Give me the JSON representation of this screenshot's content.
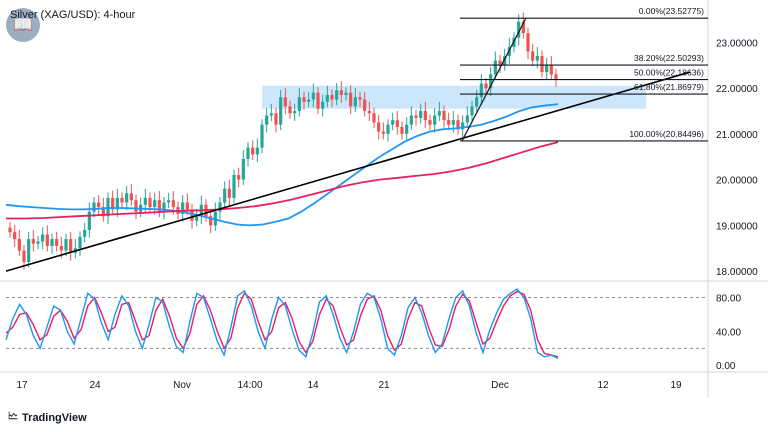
{
  "header": {
    "title": "Silver (XAG/USD): 4-hour"
  },
  "footer": {
    "brand": "TradingView"
  },
  "colors": {
    "up": "#26a69a",
    "down": "#ef5350",
    "ma_blue": "#2196f3",
    "ma_red": "#e91e63",
    "zone": "#bbdefb",
    "stoch_k": "#2196f3",
    "stoch_d": "#e91e63",
    "trendline": "#000000"
  },
  "chart_data": [
    {
      "type": "candlestick",
      "title": "Silver (XAG/USD): 4-hour",
      "x_ticks": [
        "17",
        "24",
        "Nov",
        "14:00",
        "14",
        "21",
        "Dec",
        "12",
        "19"
      ],
      "y_ticks": [
        "18.00000",
        "19.00000",
        "20.00000",
        "21.00000",
        "22.00000",
        "23.00000"
      ],
      "ylim": [
        17.85,
        23.75
      ],
      "close_series": [
        18.85,
        18.7,
        18.45,
        18.2,
        18.7,
        18.6,
        18.65,
        18.8,
        18.55,
        18.7,
        18.55,
        18.45,
        18.7,
        18.4,
        18.5,
        18.75,
        18.9,
        19.3,
        19.5,
        19.4,
        19.2,
        19.6,
        19.35,
        19.6,
        19.5,
        19.7,
        19.55,
        19.3,
        19.45,
        19.6,
        19.4,
        19.55,
        19.3,
        19.5,
        19.55,
        19.4,
        19.25,
        19.5,
        19.35,
        19.1,
        19.2,
        19.45,
        19.2,
        19.0,
        19.3,
        19.5,
        19.8,
        19.6,
        20.1,
        20.0,
        20.45,
        20.7,
        20.55,
        20.7,
        21.2,
        21.4,
        21.45,
        21.2,
        21.8,
        21.6,
        21.45,
        21.5,
        21.8,
        21.7,
        21.75,
        21.9,
        21.55,
        21.7,
        21.85,
        21.75,
        21.95,
        21.85,
        21.9,
        21.6,
        21.8,
        21.75,
        21.5,
        21.45,
        21.25,
        21.05,
        21.0,
        21.2,
        21.3,
        21.15,
        21.0,
        21.2,
        21.4,
        21.35,
        21.5,
        21.3,
        21.2,
        21.4,
        21.5,
        21.3,
        21.2,
        21.3,
        21.1,
        21.25,
        21.4,
        21.6,
        21.8,
        22.1,
        22.0,
        22.3,
        22.6,
        22.5,
        22.7,
        22.9,
        23.1,
        23.45,
        23.2,
        22.8,
        22.6,
        22.7,
        22.35,
        22.5,
        22.3,
        22.2
      ],
      "series": [
        {
          "name": "SMA blue",
          "values": [
            19.45,
            19.42,
            19.4,
            19.38,
            19.36,
            19.35,
            19.35,
            19.36,
            19.38,
            19.38,
            19.37,
            19.36,
            19.35,
            19.32,
            19.28,
            19.22,
            19.15,
            19.08,
            19.02,
            19.0,
            19.02,
            19.08,
            19.15,
            19.3,
            19.48,
            19.68,
            19.88,
            20.08,
            20.28,
            20.48,
            20.65,
            20.82,
            20.95,
            21.05,
            21.1,
            21.12,
            21.15,
            21.2,
            21.28,
            21.38,
            21.5,
            21.58,
            21.62,
            21.65
          ]
        },
        {
          "name": "SMA red",
          "values": [
            19.15,
            19.15,
            19.16,
            19.18,
            19.2,
            19.22,
            19.24,
            19.26,
            19.28,
            19.3,
            19.32,
            19.33,
            19.35,
            19.38,
            19.42,
            19.48,
            19.56,
            19.66,
            19.76,
            19.86,
            19.94,
            20.0,
            20.04,
            20.08,
            20.12,
            20.18,
            20.26,
            20.36,
            20.48,
            20.6,
            20.72,
            20.82
          ]
        }
      ],
      "fibonacci": [
        {
          "label": "0.00%(23.52775)",
          "level": 23.52775
        },
        {
          "label": "38.20%(22.50293)",
          "level": 22.50293
        },
        {
          "label": "50.00%(22.18636)",
          "level": 22.18636
        },
        {
          "label": "61.80%(21.86979)",
          "level": 21.86979
        },
        {
          "label": "100.00%(20.84496)",
          "level": 20.84496
        }
      ],
      "annotations": [
        "rising trendline",
        "resistance zone 21.55–22.05",
        "fib drawn from 20.845 low to 23.528 high"
      ]
    },
    {
      "type": "line",
      "title": "Stochastic",
      "y_ticks": [
        "0.00",
        "40.00",
        "80.00"
      ],
      "ylim": [
        -8,
        96
      ],
      "guides": [
        20,
        80
      ],
      "series": [
        {
          "name": "%K",
          "values": [
            30,
            55,
            72,
            60,
            35,
            20,
            45,
            70,
            65,
            40,
            25,
            55,
            85,
            78,
            50,
            30,
            60,
            82,
            70,
            40,
            20,
            48,
            80,
            75,
            45,
            22,
            15,
            52,
            85,
            80,
            55,
            28,
            12,
            45,
            82,
            88,
            70,
            40,
            20,
            55,
            80,
            70,
            42,
            18,
            10,
            38,
            75,
            82,
            60,
            32,
            15,
            40,
            72,
            85,
            80,
            55,
            20,
            12,
            35,
            68,
            80,
            62,
            35,
            15,
            25,
            55,
            80,
            88,
            70,
            38,
            15,
            42,
            62,
            78,
            85,
            90,
            80,
            55,
            15,
            10,
            12,
            8
          ]
        },
        {
          "name": "%D",
          "values": [
            38,
            45,
            60,
            62,
            48,
            30,
            36,
            58,
            65,
            52,
            32,
            42,
            70,
            80,
            62,
            40,
            45,
            72,
            74,
            52,
            30,
            35,
            65,
            78,
            58,
            32,
            20,
            38,
            72,
            82,
            65,
            40,
            20,
            32,
            68,
            85,
            78,
            52,
            30,
            40,
            68,
            74,
            55,
            28,
            15,
            28,
            60,
            78,
            70,
            45,
            24,
            30,
            58,
            78,
            82,
            65,
            35,
            18,
            25,
            55,
            74,
            70,
            45,
            24,
            22,
            42,
            70,
            84,
            76,
            50,
            25,
            32,
            52,
            70,
            82,
            87,
            84,
            65,
            30,
            14,
            12,
            10
          ]
        }
      ]
    }
  ]
}
